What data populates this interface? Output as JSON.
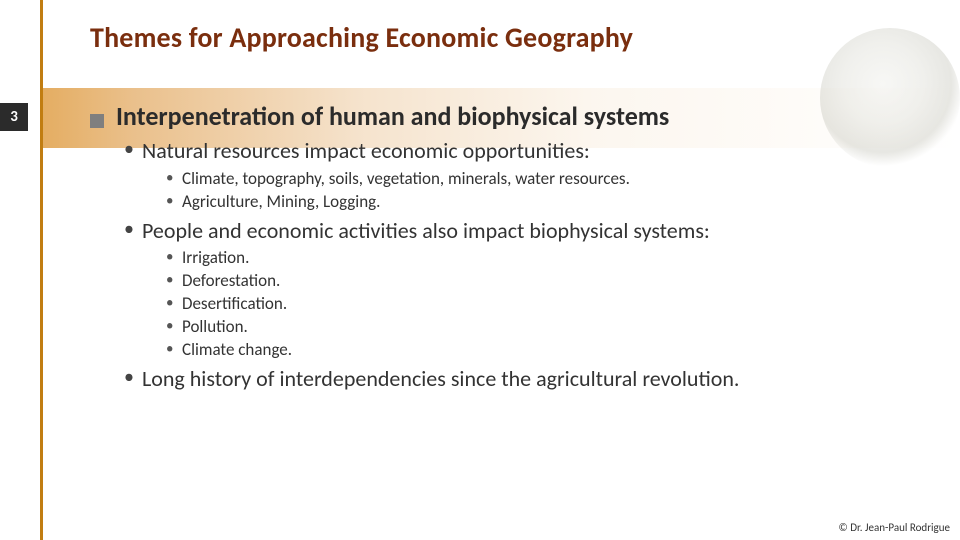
{
  "colors": {
    "title": "#7a2e0e",
    "left_rule": "#c17d11",
    "pageno_bg": "#2b2b2b",
    "pageno_fg": "#ffffff",
    "square_bullet": "#7f7f7f",
    "text": "#2b2b2b",
    "band_gradient": [
      "#e3a95a",
      "#e9bd86",
      "#f5e2cb",
      "#fcf6ee",
      "#ffffff"
    ]
  },
  "title": "Themes for Approaching Economic Geography",
  "page_number": "3",
  "heading": "Interpenetration of human and biophysical systems",
  "bullets": {
    "b1": "Natural resources impact economic opportunities:",
    "b1_sub1": "Climate, topography, soils, vegetation, minerals, water resources.",
    "b1_sub2": "Agriculture, Mining, Logging.",
    "b2": "People and economic activities also impact biophysical systems:",
    "b2_sub1": "Irrigation.",
    "b2_sub2": "Deforestation.",
    "b2_sub3": "Desertification.",
    "b2_sub4": "Pollution.",
    "b2_sub5": "Climate change.",
    "b3": "Long history of interdependencies since the agricultural revolution."
  },
  "footer": "© Dr. Jean-Paul Rodrigue"
}
